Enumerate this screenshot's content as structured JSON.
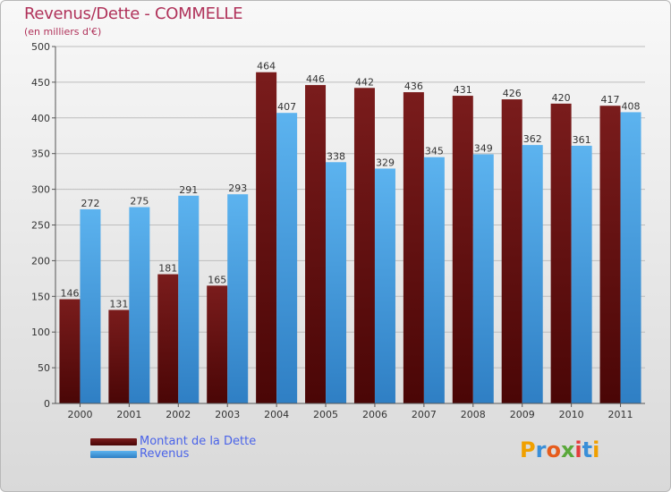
{
  "title": "Revenus/Dette - COMMELLE",
  "subtitle": "(en milliers d'€)",
  "legend": {
    "debt": "Montant de la Dette",
    "revenue": "Revenus"
  },
  "logo": "Proxiti",
  "colors": {
    "debt": "#6b1515",
    "revenue": "#4ea6e6",
    "title": "#b0325a",
    "legend_text": "#4a63e8"
  },
  "chart_data": {
    "type": "bar",
    "title": "Revenus/Dette - COMMELLE",
    "subtitle": "(en milliers d'€)",
    "categories": [
      "2000",
      "2001",
      "2002",
      "2003",
      "2004",
      "2005",
      "2006",
      "2007",
      "2008",
      "2009",
      "2010",
      "2011"
    ],
    "series": [
      {
        "name": "Montant de la Dette",
        "values": [
          146,
          131,
          181,
          165,
          464,
          446,
          442,
          436,
          431,
          426,
          420,
          417
        ]
      },
      {
        "name": "Revenus",
        "values": [
          272,
          275,
          291,
          293,
          407,
          338,
          329,
          345,
          349,
          362,
          361,
          408
        ]
      }
    ],
    "ylim": [
      0,
      500
    ],
    "yticks": [
      0,
      50,
      100,
      150,
      200,
      250,
      300,
      350,
      400,
      450,
      500
    ],
    "grid": true,
    "legend_position": "bottom-left"
  }
}
